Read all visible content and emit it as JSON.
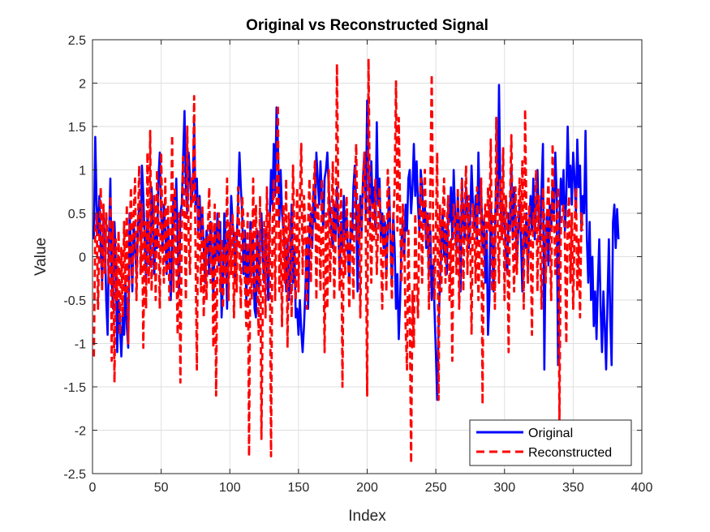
{
  "chart_data": {
    "type": "line",
    "title": "Original vs Reconstructed Signal",
    "xlabel": "Index",
    "ylabel": "Value",
    "xlim": [
      0,
      400
    ],
    "ylim": [
      -2.5,
      2.5
    ],
    "xticks": [
      "0",
      "50",
      "100",
      "150",
      "200",
      "250",
      "300",
      "350",
      "400"
    ],
    "yticks": [
      "-2.5",
      "-2",
      "-1.5",
      "-1",
      "-0.5",
      "0",
      "0.5",
      "1",
      "1.5",
      "2",
      "2.5"
    ],
    "grid": true,
    "legend_position": "bottom-right",
    "series": [
      {
        "name": "Original",
        "color": "#0000ff",
        "style": "solid",
        "x_start": 1,
        "x_step": 1,
        "values": [
          0.2,
          1.38,
          0.6,
          0.25,
          0.7,
          0.1,
          -0.3,
          0.5,
          0.2,
          -0.5,
          -0.9,
          0.2,
          0.9,
          -0.3,
          -0.6,
          0.4,
          -0.1,
          -1.1,
          -0.5,
          -0.8,
          -1.15,
          -0.7,
          -0.9,
          -0.3,
          -0.8,
          -1.05,
          0.5,
          0.1,
          -0.4,
          0.4,
          0.1,
          -0.2,
          0.3,
          0.6,
          0.2,
          1.05,
          0.7,
          0.2,
          -0.3,
          0.5,
          0.2,
          -0.1,
          0.8,
          0.4,
          -0.2,
          0.3,
          0.1,
          0.9,
          1.2,
          0.5,
          0.1,
          0.6,
          0.3,
          -0.2,
          0.4,
          0.0,
          -0.5,
          0.2,
          0.7,
          0.4,
          0.9,
          0.2,
          -0.4,
          0.5,
          0.6,
          1.15,
          1.68,
          0.8,
          0.5,
          1.2,
          0.9,
          0.6,
          0.8,
          1.55,
          0.6,
          0.9,
          0.3,
          0.7,
          0.2,
          0.5,
          0.1,
          -0.3,
          0.3,
          0.2,
          -0.2,
          0.4,
          0.1,
          -0.5,
          0.3,
          0.0,
          0.5,
          -0.1,
          0.4,
          -0.7,
          -0.3,
          0.5,
          0.2,
          -0.6,
          0.3,
          0.1,
          0.7,
          0.4,
          0.2,
          -0.3,
          0.2,
          0.6,
          1.2,
          0.8,
          0.5,
          -0.2,
          0.3,
          -0.5,
          0.1,
          -0.3,
          0.4,
          -0.1,
          0.2,
          -0.6,
          -0.7,
          0.3,
          -0.4,
          0.2,
          0.5,
          0.0,
          -0.3,
          0.3,
          -0.1,
          -0.5,
          0.4,
          1.0,
          0.6,
          1.3,
          0.7,
          1.72,
          1.3,
          0.4,
          1.0,
          0.5,
          0.3,
          0.1,
          -0.4,
          0.2,
          -0.5,
          -0.2,
          0.6,
          -0.3,
          0.1,
          -0.7,
          -0.6,
          -0.9,
          -0.5,
          -0.85,
          -1.1,
          -0.8,
          -0.4,
          0.2,
          -0.6,
          0.3,
          0.5,
          0.1,
          0.8,
          0.4,
          1.2,
          0.9,
          0.6,
          1.1,
          0.7,
          0.3,
          0.9,
          1.0,
          1.2,
          0.8,
          0.5,
          0.3,
          0.1,
          0.6,
          0.2,
          0.8,
          0.3,
          -0.2,
          0.4,
          0.1,
          0.7,
          0.2,
          0.5,
          0.0,
          -0.3,
          0.4,
          0.2,
          0.8,
          1.05,
          0.6,
          -0.4,
          0.2,
          0.7,
          0.3,
          0.9,
          1.2,
          0.5,
          1.8,
          1.0,
          0.4,
          1.1,
          0.6,
          0.8,
          0.3,
          1.55,
          0.6,
          0.9,
          0.2,
          0.5,
          0.1,
          0.4,
          -0.2,
          0.3,
          0.8,
          0.2,
          -0.3,
          0.5,
          0.1,
          -0.6,
          -0.2,
          -0.95,
          -0.5,
          0.2,
          0.4,
          0.0,
          0.6,
          0.3,
          0.9,
          1.0,
          0.5,
          0.8,
          1.3,
          0.7,
          1.1,
          0.6,
          0.3,
          1.0,
          0.8,
          0.4,
          0.6,
          0.1,
          0.5,
          -0.2,
          0.3,
          -0.5,
          -0.1,
          -0.6,
          -1.1,
          -1.65,
          -0.8,
          -0.3,
          0.1,
          0.5,
          0.0,
          0.3,
          -0.2,
          0.6,
          0.4,
          0.8,
          0.2,
          1.0,
          0.5,
          0.1,
          0.7,
          0.3,
          -0.4,
          0.9,
          0.4,
          0.2,
          0.8,
          0.6,
          0.1,
          0.4,
          1.05,
          0.6,
          0.3,
          0.7,
          0.2,
          1.2,
          0.5,
          0.8,
          0.1,
          0.4,
          -0.3,
          0.3,
          -0.9,
          -0.5,
          0.6,
          0.2,
          -0.4,
          0.3,
          0.9,
          0.5,
          1.98,
          0.7,
          0.2,
          0.6,
          0.4,
          0.1,
          -0.2,
          0.5,
          0.3,
          1.05,
          0.2,
          0.8,
          0.4,
          -0.1,
          0.3,
          0.6,
          0.2,
          -0.4,
          0.3,
          0.1,
          0.5,
          -0.2,
          0.4,
          0.7,
          0.3,
          0.9,
          0.2,
          0.6,
          1.0,
          0.4,
          0.2,
          0.8,
          1.3,
          -1.3,
          0.2,
          0.5,
          -0.1,
          0.6,
          0.3,
          0.8,
          0.5,
          1.2,
          0.7,
          -1.25,
          0.4,
          0.9,
          0.6,
          1.0,
          0.3,
          0.7,
          1.5,
          0.8,
          1.05,
          0.6,
          1.2,
          0.9,
          0.5,
          1.35,
          0.8,
          1.05,
          0.3,
          0.7,
          0.5,
          1.45,
          0.2,
          -0.3,
          0.4,
          -0.5,
          0.0,
          -0.8,
          -0.4,
          -0.95,
          -0.3,
          0.2,
          -0.6,
          -1.1,
          -0.4,
          -0.8,
          -1.3,
          -0.5,
          0.2,
          -0.7,
          -1.25,
          0.4,
          0.6,
          0.1,
          0.55,
          0.2
        ]
      },
      {
        "name": "Reconstructed",
        "color": "#ff0000",
        "style": "dashed",
        "x_start": 1,
        "x_step": 1,
        "values": [
          -1.15,
          0.3,
          0.5,
          -0.6,
          0.2,
          0.8,
          -0.4,
          0.6,
          -0.2,
          0.5,
          0.1,
          -0.3,
          0.7,
          -1.2,
          0.4,
          -1.45,
          0.2,
          -0.5,
          0.3,
          -0.9,
          0.1,
          -0.7,
          0.4,
          -0.4,
          0.6,
          -1.0,
          0.2,
          0.8,
          -0.3,
          0.5,
          0.9,
          -0.5,
          0.3,
          1.05,
          -0.2,
          0.6,
          -1.05,
          0.4,
          -0.6,
          1.2,
          -0.3,
          1.45,
          -0.4,
          0.2,
          0.7,
          -0.5,
          1.0,
          0.3,
          -0.6,
          1.2,
          0.1,
          -0.3,
          0.9,
          -0.2,
          0.6,
          -0.5,
          0.2,
          1.4,
          -0.4,
          0.8,
          0.0,
          -0.9,
          0.5,
          -1.45,
          0.3,
          1.15,
          0.4,
          -0.5,
          1.5,
          0.2,
          -0.2,
          0.9,
          0.6,
          1.85,
          0.1,
          -1.3,
          0.7,
          0.3,
          -0.4,
          0.6,
          -0.7,
          0.2,
          -0.5,
          0.3,
          0.8,
          -0.3,
          0.4,
          -1.05,
          0.6,
          -1.6,
          0.2,
          0.5,
          -0.4,
          0.2,
          -0.6,
          0.1,
          -0.3,
          0.9,
          -0.5,
          0.4,
          -0.2,
          0.5,
          -0.7,
          0.3,
          -0.4,
          0.8,
          0.2,
          -0.6,
          0.7,
          0.4,
          -0.3,
          -0.8,
          0.5,
          -2.3,
          0.3,
          -0.5,
          0.9,
          -0.4,
          0.6,
          -0.3,
          -0.9,
          0.7,
          -2.1,
          -0.5,
          0.4,
          -0.7,
          0.8,
          -0.2,
          0.5,
          -2.3,
          0.3,
          0.9,
          -0.5,
          0.6,
          1.75,
          -0.4,
          0.3,
          -0.8,
          0.6,
          -0.3,
          0.9,
          -1.05,
          0.5,
          0.2,
          -0.7,
          1.05,
          0.3,
          -0.5,
          0.8,
          -0.4,
          0.6,
          1.3,
          -0.2,
          0.7,
          0.3,
          -0.6,
          0.4,
          0.9,
          -0.3,
          0.5,
          0.8,
          1.1,
          -0.5,
          0.6,
          0.3,
          -0.4,
          0.9,
          0.2,
          -1.1,
          0.5,
          -0.6,
          1.0,
          -0.3,
          0.4,
          1.1,
          -0.5,
          0.2,
          2.22,
          0.6,
          -0.4,
          0.8,
          -1.5,
          0.3,
          -0.2,
          0.7,
          0.1,
          -0.6,
          0.5,
          0.3,
          -0.5,
          0.8,
          1.3,
          0.2,
          0.6,
          -0.7,
          0.4,
          0.9,
          1.2,
          0.3,
          -1.6,
          2.28,
          0.5,
          -0.3,
          0.6,
          0.2,
          0.9,
          -0.2,
          0.4,
          0.8,
          0.1,
          -0.6,
          0.5,
          0.2,
          -0.4,
          1.0,
          0.6,
          0.2,
          -0.5,
          0.4,
          0.8,
          2.02,
          0.3,
          1.6,
          0.5,
          -0.3,
          0.6,
          0.2,
          -0.8,
          -1.3,
          0.3,
          -0.6,
          -2.38,
          -0.4,
          -1.05,
          0.5,
          -0.2,
          -0.7,
          0.4,
          0.9,
          -0.3,
          0.6,
          1.0,
          0.2,
          0.5,
          -0.6,
          0.8,
          2.1,
          0.4,
          -0.5,
          0.3,
          1.2,
          -1.65,
          0.6,
          -0.4,
          0.5,
          0.9,
          -0.3,
          0.3,
          0.7,
          -0.5,
          0.2,
          -1.2,
          0.6,
          0.4,
          -0.2,
          0.8,
          -0.6,
          0.3,
          0.9,
          -0.4,
          0.5,
          1.05,
          -0.2,
          0.7,
          0.3,
          -0.9,
          0.6,
          0.4,
          -0.3,
          0.8,
          -0.5,
          0.2,
          0.9,
          -1.7,
          0.4,
          0.6,
          0.1,
          0.8,
          0.3,
          1.35,
          -0.4,
          0.5,
          -0.6,
          1.6,
          0.4,
          -0.3,
          0.9,
          0.2,
          1.25,
          -0.5,
          0.7,
          0.3,
          -1.1,
          0.6,
          1.4,
          0.2,
          -0.4,
          0.8,
          -0.2,
          0.5,
          0.9,
          0.3,
          1.1,
          -0.6,
          1.7,
          0.4,
          -0.3,
          0.6,
          0.2,
          -0.9,
          0.5,
          0.3,
          1.0,
          -0.4,
          0.7,
          0.2,
          -0.6,
          0.8,
          0.4,
          -0.3,
          0.5,
          0.9,
          0.2,
          -0.5,
          1.3,
          0.6,
          -0.2,
          0.4,
          0.8,
          -1.9,
          0.3,
          0.5,
          0.6,
          0.2,
          -1.0,
          0.4,
          0.7,
          -0.3,
          0.5,
          -0.6,
          0.3,
          0.8,
          -0.4,
          0.2,
          -0.7,
          0.5,
          0.3
        ]
      }
    ]
  }
}
